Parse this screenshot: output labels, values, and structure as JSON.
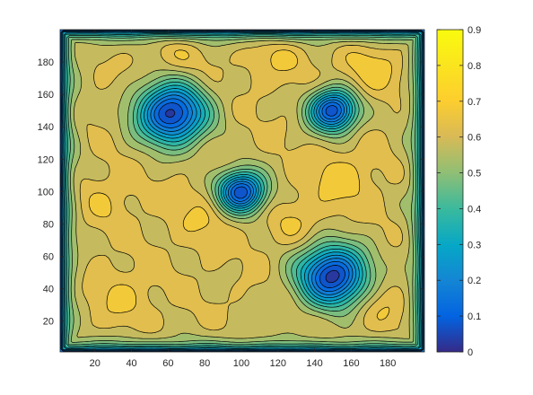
{
  "chart_data": {
    "type": "heatmap",
    "subtype": "filled-contour",
    "title": "",
    "xlabel": "",
    "ylabel": "",
    "xlim": [
      1,
      200
    ],
    "ylim": [
      1,
      200
    ],
    "xticks": [
      20,
      40,
      60,
      80,
      100,
      120,
      140,
      160,
      180
    ],
    "yticks": [
      20,
      40,
      60,
      80,
      100,
      120,
      140,
      160,
      180
    ],
    "colorbar": {
      "range": [
        0,
        0.9
      ],
      "ticks": [
        0,
        0.1,
        0.2,
        0.3,
        0.4,
        0.5,
        0.6,
        0.7,
        0.8,
        0.9
      ],
      "tick_labels": [
        "0",
        "0.1",
        "0.2",
        "0.3",
        "0.4",
        "0.5",
        "0.6",
        "0.7",
        "0.8",
        "0.9"
      ],
      "colormap": "parula"
    },
    "contour_levels": [
      0.05,
      0.1,
      0.15,
      0.2,
      0.25,
      0.3,
      0.35,
      0.4,
      0.45,
      0.5,
      0.55,
      0.6,
      0.65
    ],
    "baseline_value": 0.6,
    "edge_value": 0.1,
    "minima": [
      {
        "x": 62,
        "y": 148,
        "value": 0.02
      },
      {
        "x": 150,
        "y": 150,
        "value": 0.05
      },
      {
        "x": 100,
        "y": 100,
        "value": 0.05
      },
      {
        "x": 150,
        "y": 48,
        "value": 0.02
      }
    ],
    "high_regions": [
      {
        "x": 155,
        "y": 108,
        "value": 0.68
      },
      {
        "x": 130,
        "y": 80,
        "value": 0.65
      },
      {
        "x": 170,
        "y": 175,
        "value": 0.68
      },
      {
        "x": 120,
        "y": 185,
        "value": 0.66
      },
      {
        "x": 80,
        "y": 85,
        "value": 0.66
      },
      {
        "x": 25,
        "y": 95,
        "value": 0.65
      },
      {
        "x": 35,
        "y": 35,
        "value": 0.66
      },
      {
        "x": 175,
        "y": 30,
        "value": 0.66
      },
      {
        "x": 65,
        "y": 185,
        "value": 0.65
      }
    ]
  }
}
